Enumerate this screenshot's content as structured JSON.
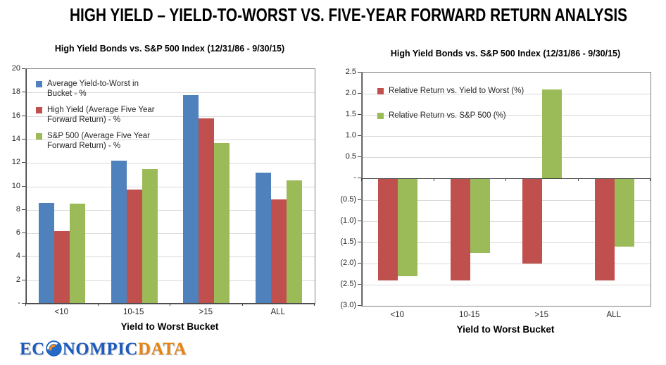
{
  "header": {
    "title": "HIGH YIELD – YIELD-TO-WORST VS. FIVE-YEAR FORWARD RETURN ANALYSIS"
  },
  "footer": {
    "logo": {
      "prefix": "EC",
      "middle": "NOMPIC",
      "suffix": "DATA"
    }
  },
  "colors": {
    "blue": "#4F81BD",
    "red": "#C0504D",
    "green": "#9BBB59",
    "gridline": "#D9D9D9",
    "axis": "#404040",
    "plot_border": "#7F7F7F",
    "logo_blue": "#1b5cbe",
    "logo_orange": "#e8830f"
  },
  "chart_data": [
    {
      "type": "bar",
      "title": "High Yield Bonds vs. S&P 500 Index (12/31/86 - 9/30/15)",
      "categories": [
        "<10",
        "10-15",
        ">15",
        "ALL"
      ],
      "series": [
        {
          "name": "Average Yield-to-Worst in Bucket - %",
          "color": "#4F81BD",
          "values": [
            8.6,
            12.2,
            17.8,
            11.2
          ]
        },
        {
          "name": "High Yield (Average Five Year Forward Return) - %",
          "color": "#C0504D",
          "values": [
            6.2,
            9.7,
            15.8,
            8.9
          ]
        },
        {
          "name": "S&P 500 (Average Five Year Forward Return) - %",
          "color": "#9BBB59",
          "values": [
            8.5,
            11.5,
            13.7,
            10.5
          ]
        }
      ],
      "xlabel": "Yield to Worst Bucket",
      "ylim": [
        0,
        20
      ],
      "ytick_step": 2,
      "ytick_labels": [
        "20",
        "18",
        "16",
        "14",
        "12",
        "10",
        "8",
        "6",
        "4",
        "2",
        "-"
      ],
      "grid": true,
      "legend_position": "top-left-inside"
    },
    {
      "type": "bar",
      "title": "High Yield Bonds vs. S&P 500 Index (12/31/86 - 9/30/15)",
      "categories": [
        "<10",
        "10-15",
        ">15",
        "ALL"
      ],
      "series": [
        {
          "name": "Relative Return vs. Yield to Worst (%)",
          "color": "#C0504D",
          "values": [
            -2.4,
            -2.4,
            -2.0,
            -2.4
          ]
        },
        {
          "name": "Relative Return vs. S&P 500 (%)",
          "color": "#9BBB59",
          "values": [
            -2.3,
            -1.75,
            2.1,
            -1.6
          ]
        }
      ],
      "xlabel": "Yield to Worst Bucket",
      "ylim": [
        -3.0,
        2.5
      ],
      "ytick_step": 0.5,
      "ytick_labels": [
        "2.5",
        "2.0",
        "1.5",
        "1.0",
        "0.5",
        "-",
        "(0.5)",
        "(1.0)",
        "(1.5)",
        "(2.0)",
        "(2.5)",
        "(3.0)"
      ],
      "grid": true,
      "legend_position": "top-left-inside"
    }
  ]
}
